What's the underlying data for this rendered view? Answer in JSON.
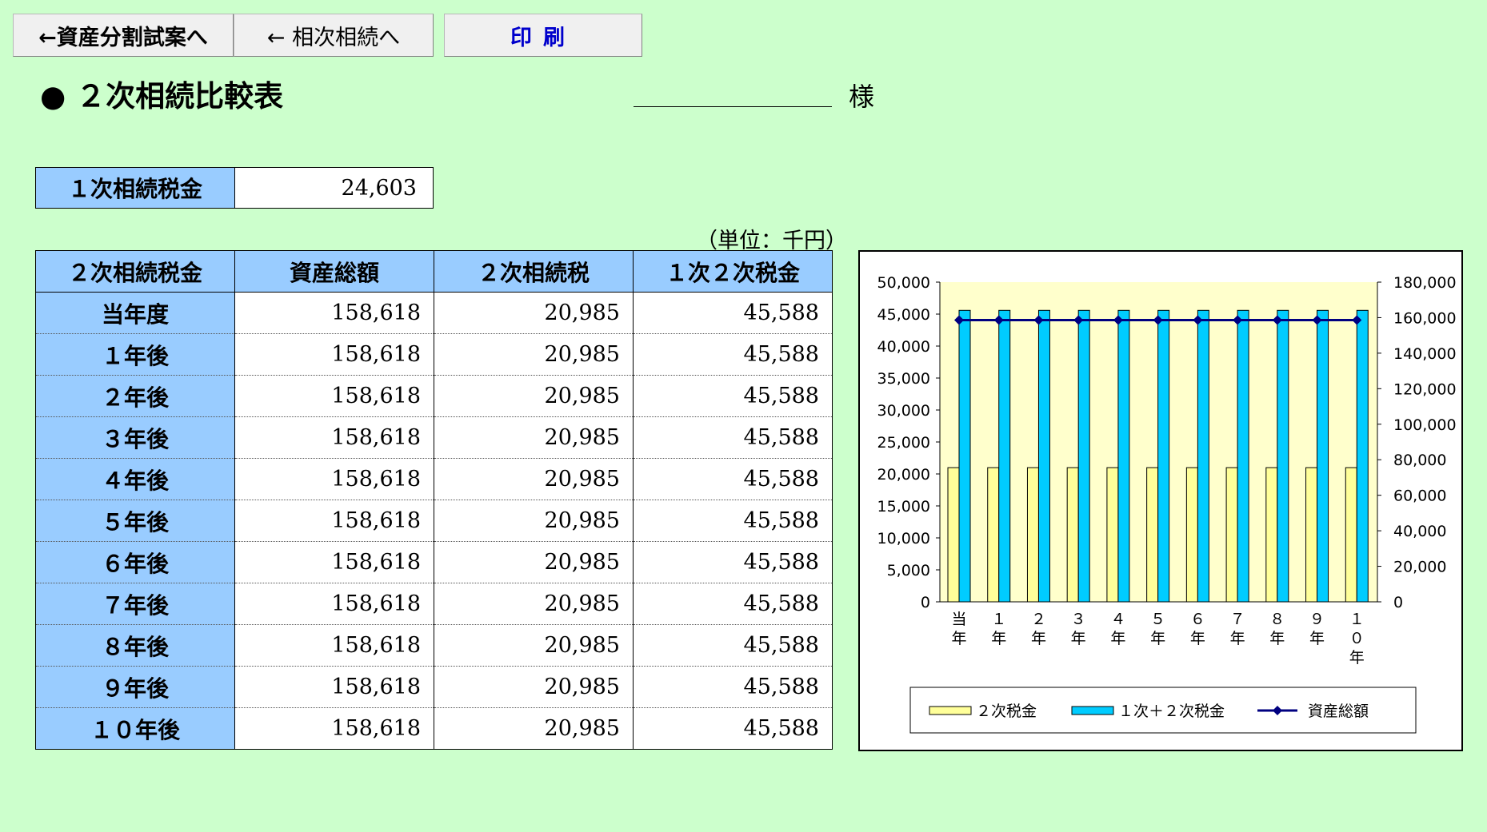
{
  "buttons": {
    "asset_split": "←資産分割試案へ",
    "second_inheritance": "← 相次相続へ",
    "print": "印刷"
  },
  "title": "● ２次相続比較表",
  "honorific": "様",
  "first_tax": {
    "label": "１次相続税金",
    "value": "24,603"
  },
  "unit_note": "（単位：千円）",
  "table": {
    "headers": [
      "２次相続税金",
      "資産総額",
      "２次相続税",
      "１次２次税金"
    ],
    "rows": [
      {
        "label": "当年度",
        "assets": "158,618",
        "second_tax": "20,985",
        "combined": "45,588"
      },
      {
        "label": "１年後",
        "assets": "158,618",
        "second_tax": "20,985",
        "combined": "45,588"
      },
      {
        "label": "２年後",
        "assets": "158,618",
        "second_tax": "20,985",
        "combined": "45,588"
      },
      {
        "label": "３年後",
        "assets": "158,618",
        "second_tax": "20,985",
        "combined": "45,588"
      },
      {
        "label": "４年後",
        "assets": "158,618",
        "second_tax": "20,985",
        "combined": "45,588"
      },
      {
        "label": "５年後",
        "assets": "158,618",
        "second_tax": "20,985",
        "combined": "45,588"
      },
      {
        "label": "６年後",
        "assets": "158,618",
        "second_tax": "20,985",
        "combined": "45,588"
      },
      {
        "label": "７年後",
        "assets": "158,618",
        "second_tax": "20,985",
        "combined": "45,588"
      },
      {
        "label": "８年後",
        "assets": "158,618",
        "second_tax": "20,985",
        "combined": "45,588"
      },
      {
        "label": "９年後",
        "assets": "158,618",
        "second_tax": "20,985",
        "combined": "45,588"
      },
      {
        "label": "１０年後",
        "assets": "158,618",
        "second_tax": "20,985",
        "combined": "45,588"
      }
    ]
  },
  "chart_data": {
    "type": "bar",
    "categories": [
      "当年",
      "１年",
      "２年",
      "３年",
      "４年",
      "５年",
      "６年",
      "７年",
      "８年",
      "９年",
      "１０年"
    ],
    "series": [
      {
        "name": "２次税金",
        "type": "bar",
        "axis": "left",
        "color": "#ffff99",
        "values": [
          20985,
          20985,
          20985,
          20985,
          20985,
          20985,
          20985,
          20985,
          20985,
          20985,
          20985
        ]
      },
      {
        "name": "１次＋２次税金",
        "type": "bar",
        "axis": "left",
        "color": "#00ccff",
        "values": [
          45588,
          45588,
          45588,
          45588,
          45588,
          45588,
          45588,
          45588,
          45588,
          45588,
          45588
        ]
      },
      {
        "name": "資産総額",
        "type": "line",
        "axis": "right",
        "color": "#000080",
        "values": [
          158618,
          158618,
          158618,
          158618,
          158618,
          158618,
          158618,
          158618,
          158618,
          158618,
          158618
        ]
      }
    ],
    "ylim_left": [
      0,
      50000
    ],
    "yticks_left": [
      "0",
      "5,000",
      "10,000",
      "15,000",
      "20,000",
      "25,000",
      "30,000",
      "35,000",
      "40,000",
      "45,000",
      "50,000"
    ],
    "ylim_right": [
      0,
      180000
    ],
    "yticks_right": [
      "0",
      "20,000",
      "40,000",
      "60,000",
      "80,000",
      "100,000",
      "120,000",
      "140,000",
      "160,000",
      "180,000"
    ],
    "plot_background": "#ffffcc",
    "grid": false,
    "legend": "bottom"
  }
}
